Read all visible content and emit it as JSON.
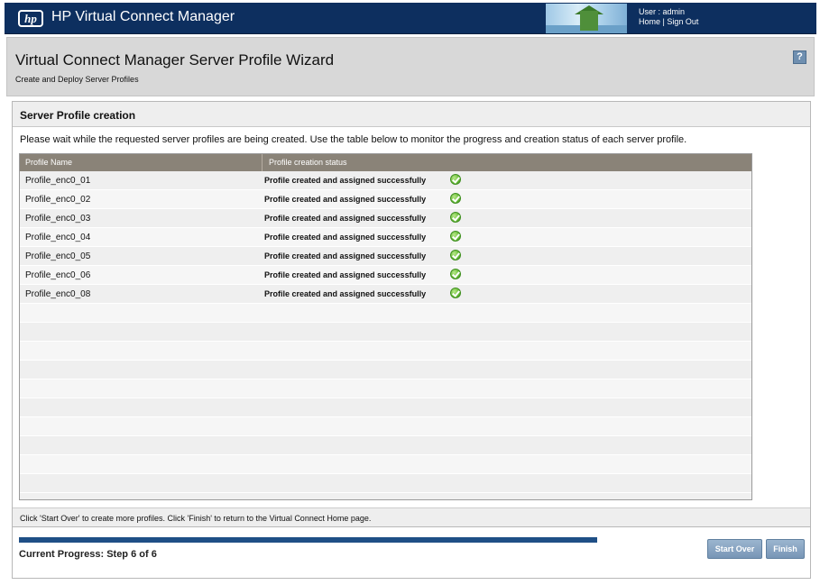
{
  "app": {
    "logo_text": "hp",
    "title": "HP Virtual Connect Manager"
  },
  "user": {
    "label": "User : admin",
    "home_link": "Home",
    "separator": "|",
    "signout_link": "Sign Out"
  },
  "header": {
    "title": "Virtual Connect Manager Server Profile Wizard",
    "subtitle": "Create and Deploy Server Profiles",
    "help_label": "?"
  },
  "panel": {
    "title": "Server Profile creation",
    "instruction": "Please wait while the requested server profiles are being created. Use the table below to monitor the progress and creation status of each server profile."
  },
  "table": {
    "headers": [
      "Profile Name",
      "Profile creation status"
    ],
    "rows": [
      {
        "name": "Profile_enc0_01",
        "status": "Profile created and assigned successfully"
      },
      {
        "name": "Profile_enc0_02",
        "status": "Profile created and assigned successfully"
      },
      {
        "name": "Profile_enc0_03",
        "status": "Profile created and assigned successfully"
      },
      {
        "name": "Profile_enc0_04",
        "status": "Profile created and assigned successfully"
      },
      {
        "name": "Profile_enc0_05",
        "status": "Profile created and assigned successfully"
      },
      {
        "name": "Profile_enc0_06",
        "status": "Profile created and assigned successfully"
      },
      {
        "name": "Profile_enc0_08",
        "status": "Profile created and assigned successfully"
      }
    ],
    "empty_rows": 10,
    "status_icon": "check-circle-icon"
  },
  "footer": {
    "note": "Click 'Start Over' to create more profiles. Click 'Finish' to return to the Virtual Connect Home page.",
    "progress_label": "Current Progress:  Step 6 of 6",
    "progress_fraction": 1.0,
    "start_over_label": "Start Over",
    "finish_label": "Finish"
  },
  "colors": {
    "topbar": "#0d2f5f",
    "table_header": "#8a8378",
    "progress": "#1f4f86",
    "button": "#7896b6"
  }
}
